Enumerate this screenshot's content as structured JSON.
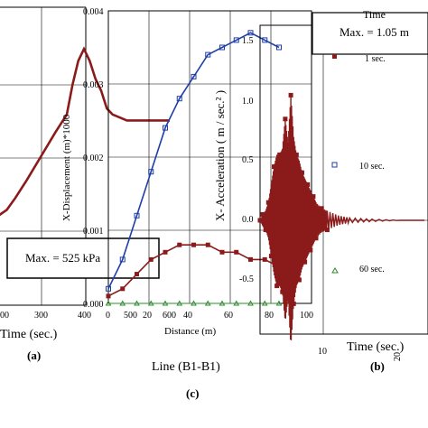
{
  "chart_data": [
    {
      "type": "line",
      "panel": "left (pressure vs time, partial)",
      "xlabel": "Time (sec.)",
      "x_ticks": [
        "00",
        "300",
        "400"
      ],
      "annotation": "Max. = 525 kPa",
      "panel_letter": "(a)",
      "series": [
        {
          "color": "#8b1a1a",
          "x": [
            0,
            30,
            60,
            100,
            150,
            200,
            240,
            260,
            280,
            300,
            320,
            340,
            360,
            380,
            400,
            450,
            500,
            550,
            600
          ],
          "y": [
            0.15,
            0.16,
            0.18,
            0.21,
            0.25,
            0.29,
            0.32,
            0.37,
            0.41,
            0.43,
            0.41,
            0.38,
            0.36,
            0.33,
            0.32,
            0.31,
            0.31,
            0.31,
            0.31
          ]
        }
      ]
    },
    {
      "type": "line",
      "panel": "center (displacement profile)",
      "xlabel": "Distance (m)",
      "ylabel": "X-Displacement (m)*1000",
      "x_ticks": [
        "0",
        "20",
        "40",
        "60",
        "80",
        "100"
      ],
      "y_ticks": [
        "0.000",
        "0.001",
        "0.002",
        "0.003",
        "0.004"
      ],
      "xlim": [
        0,
        100
      ],
      "ylim": [
        0,
        0.004
      ],
      "caption": "Line (B1-B1)",
      "panel_letter": "(c)",
      "extra_x_ticks": [
        "500",
        "600"
      ],
      "series": [
        {
          "color": "#1f3fa8",
          "marker": "square-open",
          "x": [
            0,
            7,
            14,
            21,
            28,
            35,
            42,
            49,
            56,
            63,
            70,
            77,
            84
          ],
          "y": [
            0.0002,
            0.0006,
            0.0012,
            0.0018,
            0.0024,
            0.0028,
            0.0031,
            0.0034,
            0.0035,
            0.0036,
            0.0037,
            0.0036,
            0.0035
          ]
        },
        {
          "color": "#8b1a1a",
          "marker": "square-filled",
          "x": [
            0,
            7,
            14,
            21,
            28,
            35,
            42,
            49,
            56,
            63,
            70,
            77,
            84
          ],
          "y": [
            0.0001,
            0.0002,
            0.0004,
            0.0006,
            0.0007,
            0.0008,
            0.0008,
            0.0008,
            0.0007,
            0.0007,
            0.0006,
            0.0006,
            0.0005
          ]
        },
        {
          "color": "#2e8b2e",
          "marker": "triangle-open",
          "x": [
            0,
            7,
            14,
            21,
            28,
            35,
            42,
            49,
            56,
            63,
            70,
            77,
            84
          ],
          "y": [
            0.0,
            0.0,
            0.0,
            0.0,
            0.0,
            0.0,
            0.0,
            0.0,
            0.0,
            0.0,
            0.0,
            0.0,
            0.0
          ]
        }
      ]
    },
    {
      "type": "line",
      "panel": "right (acceleration time history)",
      "ylabel": "X- Acceleration ( m / sec.² )",
      "xlabel": "Time (sec.)",
      "y_ticks": [
        "-0.5",
        "0.0",
        "0.5",
        "1.0",
        "1.5"
      ],
      "x_ticks": [
        "10",
        "20"
      ],
      "ylim": [
        -0.75,
        1.75
      ],
      "xlim": [
        0,
        30
      ],
      "annotation": "Max. = 1.05 m",
      "panel_letter": "(b)",
      "legend": {
        "title": "Time",
        "placement": "right",
        "entries": [
          {
            "label": "1 sec.",
            "marker": "square-filled",
            "color": "#8b1a1a"
          },
          {
            "label": "10 sec.",
            "marker": "square-open",
            "color": "#1f3fa8"
          },
          {
            "label": "60 sec.",
            "marker": "triangle-open",
            "color": "#2e8b2e"
          }
        ]
      },
      "series": [
        {
          "color": "#8b1a1a",
          "x": [
            0,
            0.5,
            1,
            1.5,
            2,
            2.5,
            3,
            3.5,
            4,
            4.5,
            5,
            5.5,
            6,
            6.5,
            7,
            7.5,
            8,
            8.5,
            9,
            9.5,
            10,
            11,
            12,
            14,
            16,
            20,
            25,
            30
          ],
          "y": [
            0.0,
            0.05,
            -0.08,
            0.15,
            -0.3,
            0.45,
            -0.55,
            0.55,
            -0.6,
            0.85,
            -0.65,
            1.05,
            -0.7,
            0.55,
            -0.5,
            0.4,
            -0.35,
            0.3,
            -0.25,
            0.2,
            -0.15,
            0.1,
            -0.08,
            0.04,
            -0.02,
            0.01,
            0.0,
            0.0
          ]
        }
      ]
    }
  ]
}
